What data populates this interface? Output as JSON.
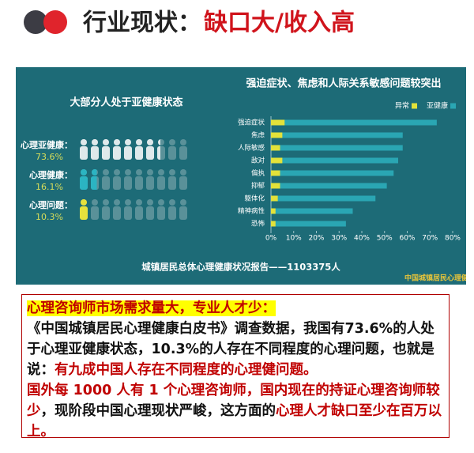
{
  "header": {
    "title_part1": "行业现状：",
    "title_part2": "缺口大/收入高"
  },
  "infographic": {
    "title": "大部分人处于亚健康状态",
    "rows": [
      {
        "label": "心理亚健康：",
        "value": 73.6,
        "value_label": "73.6%",
        "color": "#dfe9eb"
      },
      {
        "label": "心理健康：",
        "value": 16.1,
        "value_label": "16.1%",
        "color": "#2bb4c2"
      },
      {
        "label": "心理问题：",
        "value": 10.3,
        "value_label": "10.3%",
        "color": "#e6e23c"
      }
    ],
    "footer": "城镇居民总体心理健康状况报告——1103375人",
    "watermark": "中国城镇居民心理健康"
  },
  "chart_data": {
    "type": "hbar",
    "title": "强迫症状、焦虑和人际关系敏感问题较突出",
    "categories": [
      "强迫症状",
      "焦虑",
      "人际敏感",
      "敌对",
      "偏执",
      "抑郁",
      "躯体化",
      "精神病性",
      "恐怖"
    ],
    "series": [
      {
        "name": "异常",
        "color": "#e3e23a",
        "values": [
          6,
          5,
          4,
          5,
          4,
          4,
          3,
          2,
          2
        ]
      },
      {
        "name": "亚健康",
        "color": "#2aa6b3",
        "values": [
          73,
          58,
          58,
          56,
          54,
          51,
          46,
          36,
          33
        ]
      }
    ],
    "xlim": [
      0,
      80
    ],
    "xticks": [
      {
        "value": 0,
        "label": "0%"
      },
      {
        "value": 10,
        "label": "10%"
      },
      {
        "value": 20,
        "label": "20%"
      },
      {
        "value": 30,
        "label": "30%"
      },
      {
        "value": 40,
        "label": "40%"
      },
      {
        "value": 50,
        "label": "50%"
      },
      {
        "value": 60,
        "label": "60%"
      },
      {
        "value": 70,
        "label": "70%"
      },
      {
        "value": 80,
        "label": "80%"
      }
    ],
    "legend": "top-right"
  },
  "text_box": {
    "heading": "心理咨询师市场需求量大，专业人才少：",
    "paragraphs": [
      [
        {
          "text": "《中国城镇居民心理健康白皮书》调查数据，我国有73.6%的人处于心理亚健康状态，10.3%的人存在不同程度的心理问题，也就是说：",
          "color": "#111111"
        },
        {
          "text": "有九成中国人存在不同程度的心理健问题。",
          "color": "#c00000"
        }
      ],
      [
        {
          "text": "国外每 1000 人有 1 个心理咨询师，国内现在的持证心理咨询师较少",
          "color": "#c00000"
        },
        {
          "text": "，现阶段中国心理现状严峻，这方面的",
          "color": "#111111"
        },
        {
          "text": "心理人才缺口至少在百万以上。",
          "color": "#c00000"
        }
      ]
    ]
  }
}
